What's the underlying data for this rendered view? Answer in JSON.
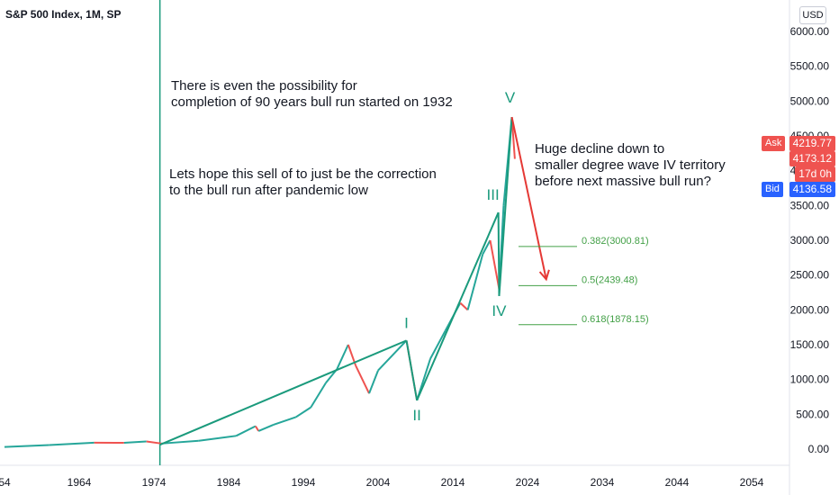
{
  "header": {
    "symbol": "S&P 500 Index, 1M, SP",
    "currency": "USD"
  },
  "annotations": {
    "text1_line1": "There is even the possibility for",
    "text1_line2": "completion of  90 years bull run started on 1932",
    "text2_line1": "Lets hope this sell of to just be the correction",
    "text2_line2": "to the bull run after pandemic low",
    "text3_line1": "Huge decline down to",
    "text3_line2": "smaller degree wave IV territory",
    "text3_line3": "before next massive bull run?"
  },
  "price_tags": {
    "ask_label": "Ask",
    "ask_value": "4219.77",
    "last_value": "4173.12",
    "countdown": "17d 0h",
    "bid_label": "Bid",
    "bid_value": "4136.58"
  },
  "colors": {
    "wave": "#1a9a7c",
    "fib": "#43a047",
    "projection": "#e53935",
    "ask": "#ef5350",
    "bid": "#2962ff",
    "up_candle": "#26a69a",
    "down_candle": "#ef5350"
  },
  "chart_data": {
    "type": "line",
    "title": "S&P 500 Index, 1M, SP",
    "x_ticks": [
      "54",
      "1964",
      "1974",
      "1984",
      "1994",
      "2004",
      "2014",
      "2024",
      "2034",
      "2044",
      "2054"
    ],
    "y_ticks": [
      "0.00",
      "500.00",
      "1000.00",
      "1500.00",
      "2000.00",
      "2500.00",
      "3000.00",
      "3500.00",
      "4000.00",
      "4500.00",
      "5000.00",
      "5500.00",
      "6000.00"
    ],
    "xlim": [
      1954,
      2055
    ],
    "ylim": [
      -150,
      6450
    ],
    "series": [
      {
        "values": [
          [
            1954,
            30
          ],
          [
            1960,
            58
          ],
          [
            1966,
            92
          ],
          [
            1970,
            90
          ],
          [
            1973,
            110
          ],
          [
            1975,
            80
          ],
          [
            1980,
            120
          ],
          [
            1985,
            190
          ],
          [
            1987.6,
            330
          ],
          [
            1988,
            260
          ],
          [
            1990,
            350
          ],
          [
            1993,
            460
          ],
          [
            1995,
            600
          ],
          [
            1997,
            950
          ],
          [
            1998.5,
            1150
          ],
          [
            2000,
            1500
          ],
          [
            2001,
            1200
          ],
          [
            2002.8,
            800
          ],
          [
            2004,
            1130
          ],
          [
            2007.8,
            1560
          ],
          [
            2009.2,
            700
          ],
          [
            2011,
            1300
          ],
          [
            2013,
            1700
          ],
          [
            2015,
            2100
          ],
          [
            2016,
            2000
          ],
          [
            2018,
            2800
          ],
          [
            2019,
            3000
          ],
          [
            2020.2,
            2300
          ],
          [
            2020.8,
            3500
          ],
          [
            2021.9,
            4770
          ],
          [
            2022.3,
            4170
          ]
        ]
      }
    ],
    "waves": [
      {
        "label": "I",
        "x": 2007.8,
        "y": 1560
      },
      {
        "label": "II",
        "x": 2009.2,
        "y": 700
      },
      {
        "label": "III",
        "x": 2020.1,
        "y": 3400
      },
      {
        "label": "IV",
        "x": 2020.2,
        "y": 2200
      },
      {
        "label": "V",
        "x": 2021.9,
        "y": 4770
      }
    ],
    "wave_origin": {
      "x": 1974.8,
      "y": 62
    },
    "projection": {
      "from": {
        "x": 2021.9,
        "y": 4770
      },
      "to": {
        "x": 2026.5,
        "y": 2439
      }
    },
    "fib_levels": [
      {
        "label": "0.382(3000.81)",
        "value": 3000.81
      },
      {
        "label": "0.5(2439.48)",
        "value": 2439.48
      },
      {
        "label": "0.618(1878.15)",
        "value": 1878.15
      }
    ],
    "vertical_marker_x": 1974.8,
    "grid": false
  }
}
